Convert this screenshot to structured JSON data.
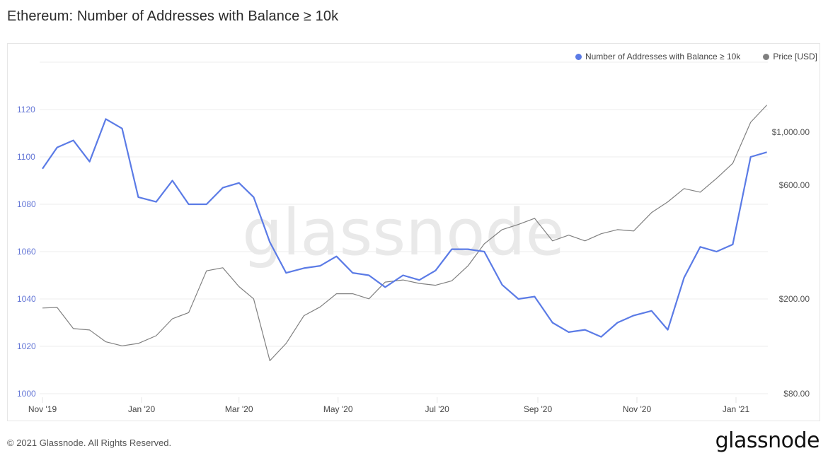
{
  "header": {
    "title": "Ethereum: Number of Addresses with Balance ≥ 10k"
  },
  "legend": {
    "items": [
      {
        "label": "Number of Addresses with Balance ≥ 10k",
        "color": "#5b7be6"
      },
      {
        "label": "Price [USD]",
        "color": "#808080"
      }
    ]
  },
  "watermark": "glassnode",
  "footer": {
    "copyright": "© 2021 Glassnode. All Rights Reserved.",
    "logo": "glassnode"
  },
  "chart_data": {
    "type": "line",
    "title": "Ethereum: Number of Addresses with Balance ≥ 10k",
    "xlabel": "",
    "ylabel": "",
    "x_ticks": [
      "Nov '19",
      "Jan '20",
      "Mar '20",
      "May '20",
      "Jul '20",
      "Sep '20",
      "Nov '20",
      "Jan '21"
    ],
    "y_left_ticks": [
      1000,
      1020,
      1040,
      1060,
      1080,
      1100,
      1120
    ],
    "y_left_range": [
      1000,
      1140
    ],
    "y_right_ticks": [
      "$80.00",
      "$200.00",
      "$600.00",
      "$1,000.00"
    ],
    "y_right_scale": "log",
    "grid": true,
    "legend_position": "top-right",
    "series": [
      {
        "name": "Number of Addresses with Balance ≥ 10k",
        "axis": "left",
        "color": "#5b7be6",
        "x": [
          "2019-11-01",
          "2019-11-10",
          "2019-11-20",
          "2019-11-30",
          "2019-12-10",
          "2019-12-20",
          "2019-12-30",
          "2020-01-10",
          "2020-01-20",
          "2020-01-30",
          "2020-02-10",
          "2020-02-20",
          "2020-03-01",
          "2020-03-10",
          "2020-03-20",
          "2020-03-30",
          "2020-04-10",
          "2020-04-20",
          "2020-04-30",
          "2020-05-10",
          "2020-05-20",
          "2020-05-30",
          "2020-06-10",
          "2020-06-20",
          "2020-06-30",
          "2020-07-10",
          "2020-07-20",
          "2020-07-30",
          "2020-08-10",
          "2020-08-20",
          "2020-08-30",
          "2020-09-10",
          "2020-09-20",
          "2020-09-30",
          "2020-10-10",
          "2020-10-20",
          "2020-10-30",
          "2020-11-10",
          "2020-11-20",
          "2020-11-30",
          "2020-12-10",
          "2020-12-20",
          "2020-12-30",
          "2021-01-10",
          "2021-01-20"
        ],
        "values": [
          1095,
          1104,
          1107,
          1098,
          1116,
          1112,
          1083,
          1081,
          1090,
          1080,
          1080,
          1087,
          1089,
          1083,
          1064,
          1051,
          1053,
          1054,
          1058,
          1051,
          1050,
          1045,
          1050,
          1048,
          1052,
          1061,
          1061,
          1060,
          1046,
          1040,
          1041,
          1030,
          1026,
          1027,
          1024,
          1030,
          1033,
          1035,
          1027,
          1049,
          1062,
          1060,
          1063,
          1100,
          1102
        ]
      },
      {
        "name": "Price [USD]",
        "axis": "right",
        "color": "#808080",
        "x": [
          "2019-11-01",
          "2019-11-10",
          "2019-11-20",
          "2019-11-30",
          "2019-12-10",
          "2019-12-20",
          "2019-12-30",
          "2020-01-10",
          "2020-01-20",
          "2020-01-30",
          "2020-02-10",
          "2020-02-20",
          "2020-03-01",
          "2020-03-10",
          "2020-03-20",
          "2020-03-30",
          "2020-04-10",
          "2020-04-20",
          "2020-04-30",
          "2020-05-10",
          "2020-05-20",
          "2020-05-30",
          "2020-06-10",
          "2020-06-20",
          "2020-06-30",
          "2020-07-10",
          "2020-07-20",
          "2020-07-30",
          "2020-08-10",
          "2020-08-20",
          "2020-08-30",
          "2020-09-10",
          "2020-09-20",
          "2020-09-30",
          "2020-10-10",
          "2020-10-20",
          "2020-10-30",
          "2020-11-10",
          "2020-11-20",
          "2020-11-30",
          "2020-12-10",
          "2020-12-20",
          "2020-12-30",
          "2021-01-10",
          "2021-01-20"
        ],
        "values": [
          183,
          184,
          150,
          148,
          132,
          127,
          130,
          140,
          165,
          175,
          262,
          270,
          225,
          200,
          110,
          130,
          170,
          185,
          210,
          210,
          200,
          235,
          240,
          232,
          228,
          238,
          275,
          340,
          390,
          410,
          435,
          350,
          370,
          350,
          375,
          390,
          385,
          460,
          510,
          580,
          560,
          640,
          740,
          1100,
          1300
        ]
      }
    ]
  }
}
